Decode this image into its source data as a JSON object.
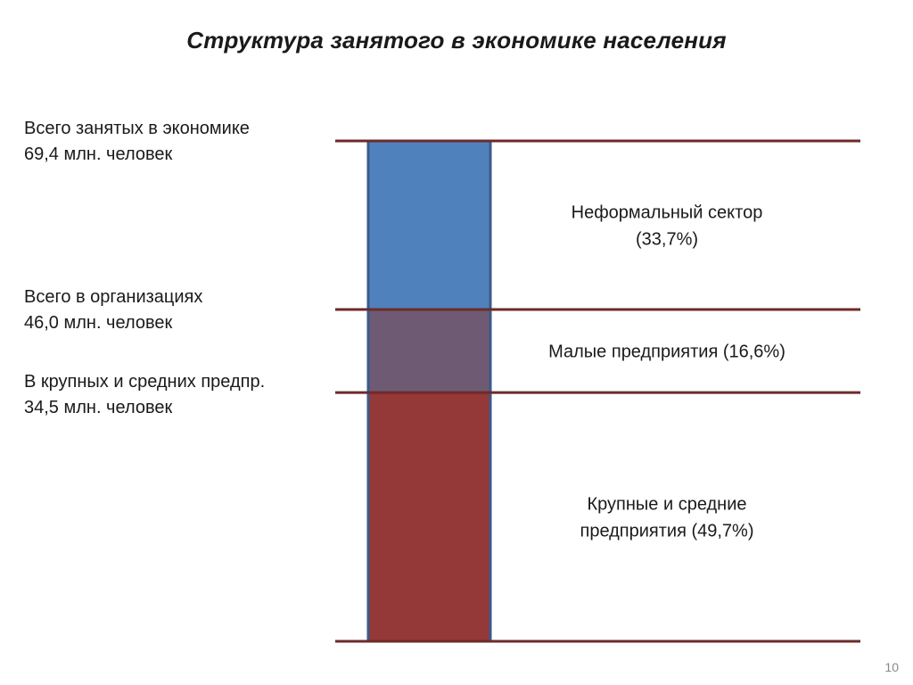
{
  "title": "Структура занятого в экономике населения",
  "left_labels": [
    {
      "line1": "Всего занятых в экономике",
      "line2": "69,4 млн. человек"
    },
    {
      "line1": "Всего в организациях",
      "line2": "46,0 млн. человек"
    },
    {
      "line1": "В крупных и средних предпр.",
      "line2": "34,5 млн. человек"
    }
  ],
  "page_number": "10",
  "colors": {
    "line": "#6e2a2a",
    "border": "#3b5a8c"
  },
  "chart_data": {
    "type": "bar",
    "stacked": true,
    "unit": "%",
    "ylim": [
      0,
      100
    ],
    "series": [
      {
        "label_lines": [
          "Крупные и средние",
          "предприятия (49,7%)"
        ],
        "value": 49.7,
        "color": "#953838"
      },
      {
        "label_lines": [
          "Малые предприятия (16,6%)"
        ],
        "value": 16.6,
        "color": "#6e5a73"
      },
      {
        "label_lines": [
          "Неформальный сектор",
          "(33,7%)"
        ],
        "value": 33.7,
        "color": "#4f81bd"
      }
    ]
  }
}
